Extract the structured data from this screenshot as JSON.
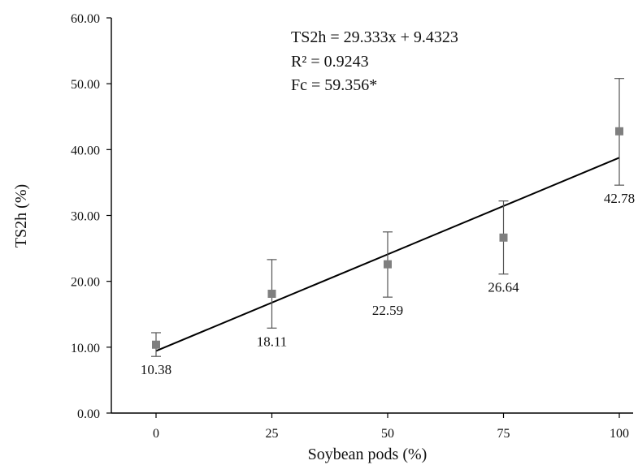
{
  "chart_data": {
    "type": "scatter",
    "xlabel": "Soybean pods (%)",
    "ylabel": "TS2h (%)",
    "xlim": [
      -10,
      110
    ],
    "ylim": [
      0,
      60
    ],
    "x_ticks": [
      0,
      25,
      50,
      75,
      100
    ],
    "y_ticks": [
      "0.00",
      "10.00",
      "20.00",
      "30.00",
      "40.00",
      "50.00",
      "60.00"
    ],
    "grid": false,
    "series": [
      {
        "x": [
          0,
          25,
          50,
          75,
          100
        ],
        "y": [
          10.38,
          18.11,
          22.59,
          26.64,
          42.78
        ],
        "error_low": [
          8.6,
          12.9,
          17.6,
          21.1,
          34.6
        ],
        "error_high": [
          12.2,
          23.3,
          27.5,
          32.2,
          50.8
        ],
        "marker": "square",
        "color": "#7f7f7f"
      }
    ],
    "data_labels": [
      "10.38",
      "18.11",
      "22.59",
      "26.64",
      "42.78"
    ],
    "trendline": {
      "slope": 29.333,
      "intercept": 9.4323,
      "x_range": [
        0,
        100
      ],
      "color": "#000000"
    },
    "annotations": [
      "TS2h = 29.333x + 9.4323",
      "R² = 0.9243",
      "Fc = 59.356*"
    ]
  }
}
